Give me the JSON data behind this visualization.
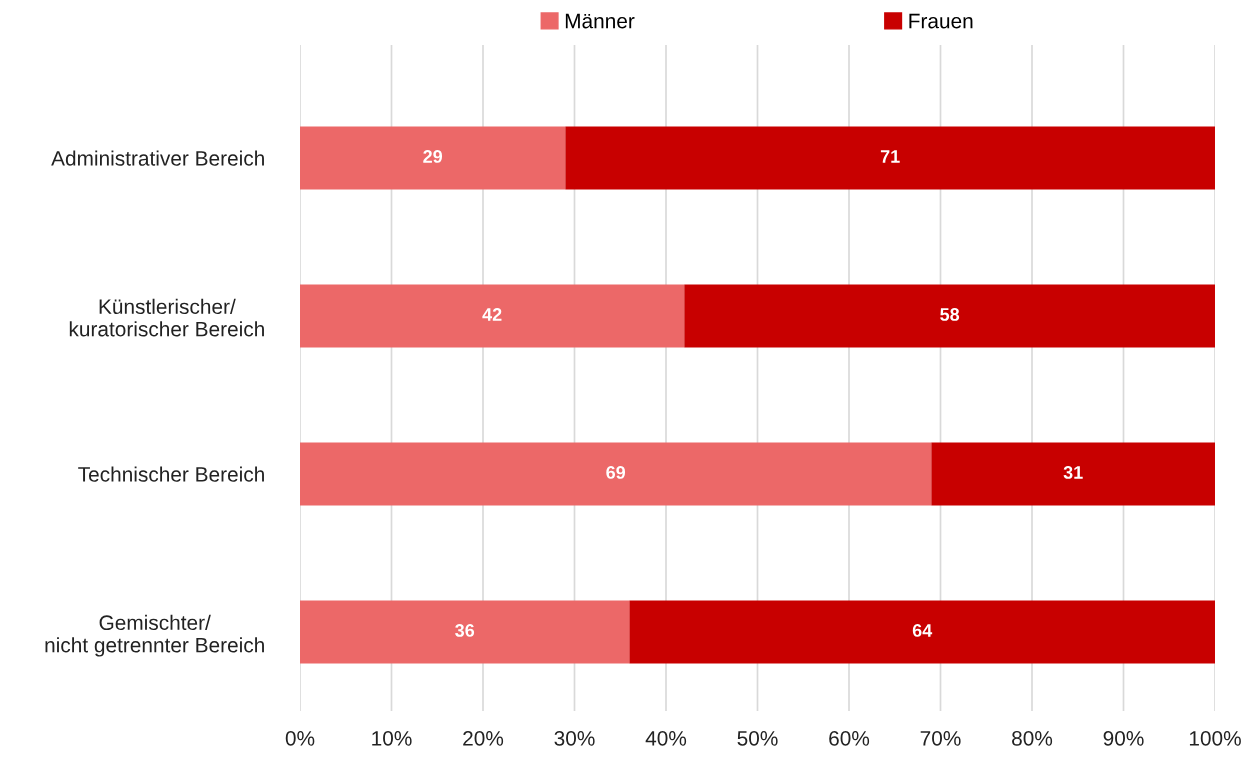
{
  "chart_data": {
    "type": "bar",
    "orientation": "horizontal",
    "stacked": true,
    "categories": [
      "Administrativer Bereich",
      "Künstlerischer/\nkuratorischer Bereich",
      "Technischer Bereich",
      "Gemischter/\nnicht getrennter Bereich"
    ],
    "series": [
      {
        "name": "Männer",
        "color": "#ec6868",
        "values": [
          29,
          42,
          69,
          36
        ]
      },
      {
        "name": "Frauen",
        "color": "#c80000",
        "values": [
          71,
          58,
          31,
          64
        ]
      }
    ],
    "xlim": [
      0,
      100
    ],
    "xticks": [
      {
        "value": 0,
        "label": "0%"
      },
      {
        "value": 10,
        "label": "10%"
      },
      {
        "value": 20,
        "label": "20%"
      },
      {
        "value": 30,
        "label": "30%"
      },
      {
        "value": 40,
        "label": "40%"
      },
      {
        "value": 50,
        "label": "50%"
      },
      {
        "value": 60,
        "label": "60%"
      },
      {
        "value": 70,
        "label": "70%"
      },
      {
        "value": 80,
        "label": "80%"
      },
      {
        "value": 90,
        "label": "90%"
      },
      {
        "value": 100,
        "label": "100%"
      }
    ],
    "data_labels": true,
    "grid": "x",
    "legend": "top"
  }
}
